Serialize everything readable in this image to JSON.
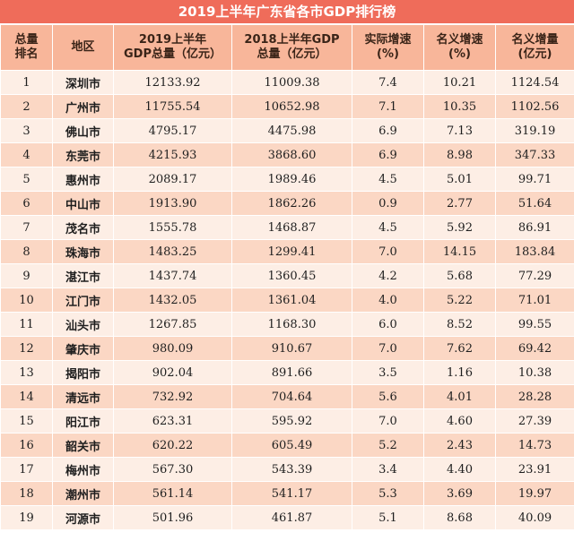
{
  "title": "2019上半年广东省各市GDP排行榜",
  "headers": [
    [
      "总量",
      "排名"
    ],
    [
      "地区"
    ],
    [
      "2019上半年",
      "GDP总量（亿元）"
    ],
    [
      "2018上半年GDP",
      "总量（亿元）"
    ],
    [
      "实际增速",
      "(%)"
    ],
    [
      "名义增速",
      "(%)"
    ],
    [
      "名义增量",
      "(亿元)"
    ]
  ],
  "rows": [
    [
      "1",
      "深圳市",
      "12133.92",
      "11009.38",
      "7.4",
      "10.21",
      "1124.54"
    ],
    [
      "2",
      "广州市",
      "11755.54",
      "10652.98",
      "7.1",
      "10.35",
      "1102.56"
    ],
    [
      "3",
      "佛山市",
      "4795.17",
      "4475.98",
      "6.9",
      "7.13",
      "319.19"
    ],
    [
      "4",
      "东莞市",
      "4215.93",
      "3868.60",
      "6.9",
      "8.98",
      "347.33"
    ],
    [
      "5",
      "惠州市",
      "2089.17",
      "1989.46",
      "4.5",
      "5.01",
      "99.71"
    ],
    [
      "6",
      "中山市",
      "1913.90",
      "1862.26",
      "0.9",
      "2.77",
      "51.64"
    ],
    [
      "7",
      "茂名市",
      "1555.78",
      "1468.87",
      "4.5",
      "5.92",
      "86.91"
    ],
    [
      "8",
      "珠海市",
      "1483.25",
      "1299.41",
      "7.0",
      "14.15",
      "183.84"
    ],
    [
      "9",
      "湛江市",
      "1437.74",
      "1360.45",
      "4.2",
      "5.68",
      "77.29"
    ],
    [
      "10",
      "江门市",
      "1432.05",
      "1361.04",
      "4.0",
      "5.22",
      "71.01"
    ],
    [
      "11",
      "汕头市",
      "1267.85",
      "1168.30",
      "6.0",
      "8.52",
      "99.55"
    ],
    [
      "12",
      "肇庆市",
      "980.09",
      "910.67",
      "7.0",
      "7.62",
      "69.42"
    ],
    [
      "13",
      "揭阳市",
      "902.04",
      "891.66",
      "3.5",
      "1.16",
      "10.38"
    ],
    [
      "14",
      "清远市",
      "732.92",
      "704.64",
      "5.6",
      "4.01",
      "28.28"
    ],
    [
      "15",
      "阳江市",
      "623.31",
      "595.92",
      "7.0",
      "4.60",
      "27.39"
    ],
    [
      "16",
      "韶关市",
      "620.22",
      "605.49",
      "5.2",
      "2.43",
      "14.73"
    ],
    [
      "17",
      "梅州市",
      "567.30",
      "543.39",
      "3.4",
      "4.40",
      "23.91"
    ],
    [
      "18",
      "潮州市",
      "561.14",
      "541.17",
      "5.3",
      "3.69",
      "19.97"
    ],
    [
      "19",
      "河源市",
      "501.96",
      "461.87",
      "5.1",
      "8.68",
      "40.09"
    ]
  ]
}
